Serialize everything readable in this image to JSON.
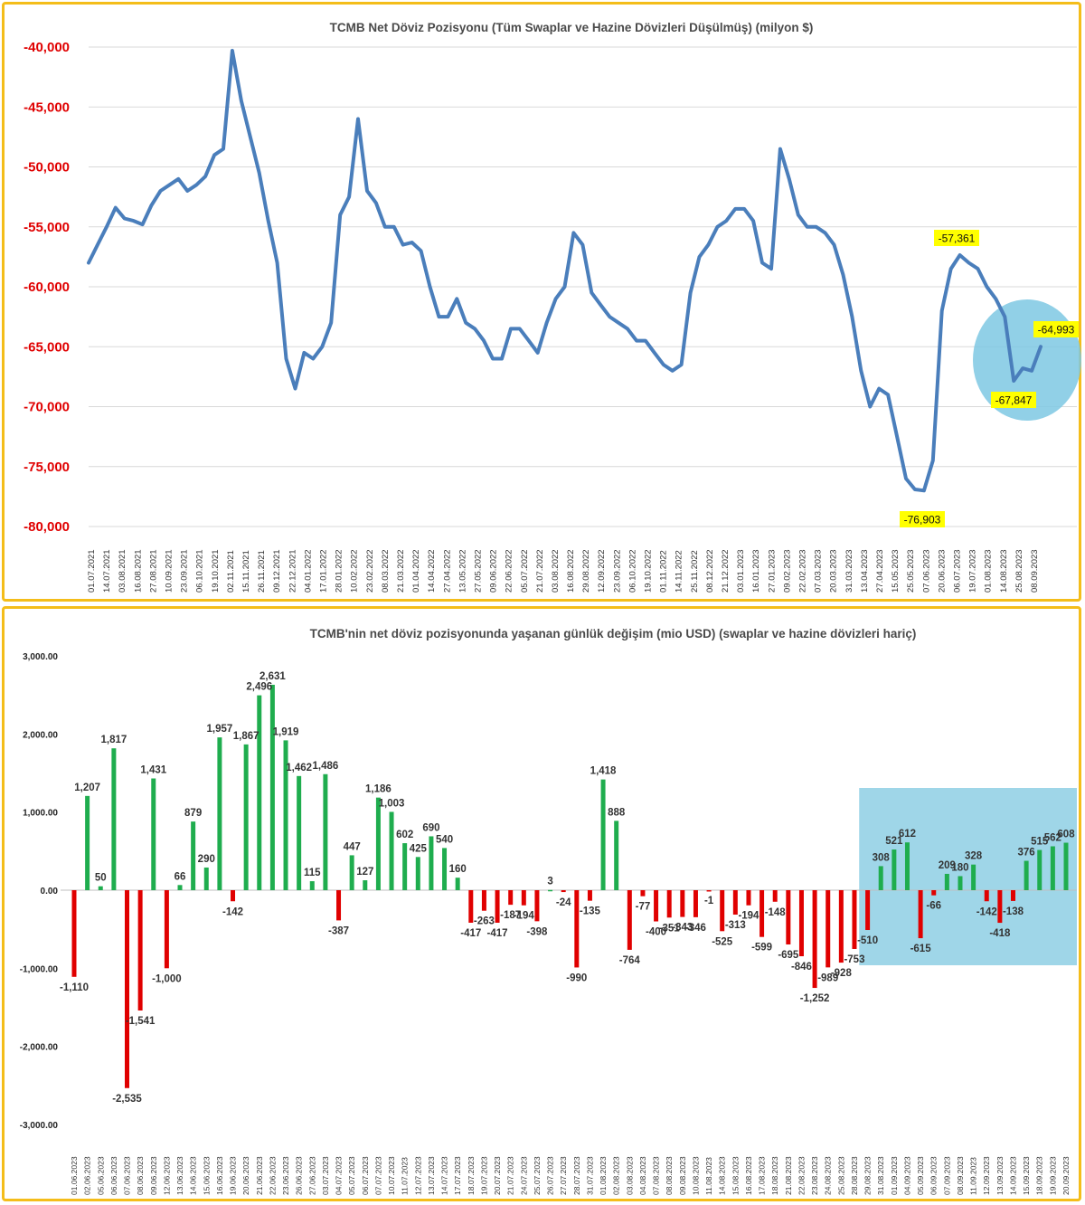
{
  "charts": [
    {
      "title": "TCMB Net Döviz Pozisyonu (Tüm Swaplar ve Hazine Dövizleri Düşülmüş) (milyon $)",
      "y_ticks": [
        "-40,000",
        "-45,000",
        "-50,000",
        "-55,000",
        "-60,000",
        "-65,000",
        "-70,000",
        "-75,000",
        "-80,000"
      ],
      "x_ticks": [
        "01.07.2021",
        "14.07.2021",
        "03.08.2021",
        "16.08.2021",
        "27.08.2021",
        "10.09.2021",
        "23.09.2021",
        "06.10.2021",
        "19.10.2021",
        "02.11.2021",
        "15.11.2021",
        "26.11.2021",
        "09.12.2021",
        "22.12.2021",
        "04.01.2022",
        "17.01.2022",
        "28.01.2022",
        "10.02.2022",
        "23.02.2022",
        "08.03.2022",
        "21.03.2022",
        "01.04.2022",
        "14.04.2022",
        "27.04.2022",
        "13.05.2022",
        "27.05.2022",
        "09.06.2022",
        "22.06.2022",
        "05.07.2022",
        "21.07.2022",
        "03.08.2022",
        "16.08.2022",
        "29.08.2022",
        "12.09.2022",
        "23.09.2022",
        "06.10.2022",
        "19.10.2022",
        "01.11.2022",
        "14.11.2022",
        "25.11.2022",
        "08.12.2022",
        "21.12.2022",
        "03.01.2023",
        "16.01.2023",
        "27.01.2023",
        "09.02.2023",
        "22.02.2023",
        "07.03.2023",
        "20.03.2023",
        "31.03.2023",
        "13.04.2023",
        "27.04.2023",
        "15.05.2023",
        "25.05.2023",
        "07.06.2023",
        "20.06.2023",
        "06.07.2023",
        "19.07.2023",
        "01.08.2023",
        "14.08.2023",
        "25.08.2023",
        "08.09.2023"
      ],
      "callouts": [
        "-57,361",
        "-64,993",
        "-67,847",
        "-76,903"
      ]
    },
    {
      "title": "TCMB'nin net döviz pozisyonunda yaşanan günlük değişim (mio USD) (swaplar ve hazine dövizleri hariç)",
      "y_ticks": [
        "3,000.00",
        "2,000.00",
        "1,000.00",
        "0.00",
        "-1,000.00",
        "-2,000.00",
        "-3,000.00"
      ]
    }
  ],
  "chart_data": [
    {
      "type": "line",
      "title": "TCMB Net Döviz Pozisyonu (Tüm Swaplar ve Hazine Dövizleri Düşülmüş) (milyon $)",
      "xlabel": "",
      "ylabel": "",
      "ylim": [
        -80000,
        -40000
      ],
      "x_tick_labels": [
        "01.07.2021",
        "14.07.2021",
        "03.08.2021",
        "16.08.2021",
        "27.08.2021",
        "10.09.2021",
        "23.09.2021",
        "06.10.2021",
        "19.10.2021",
        "02.11.2021",
        "15.11.2021",
        "26.11.2021",
        "09.12.2021",
        "22.12.2021",
        "04.01.2022",
        "17.01.2022",
        "28.01.2022",
        "10.02.2022",
        "23.02.2022",
        "08.03.2022",
        "21.03.2022",
        "01.04.2022",
        "14.04.2022",
        "27.04.2022",
        "13.05.2022",
        "27.05.2022",
        "09.06.2022",
        "22.06.2022",
        "05.07.2022",
        "21.07.2022",
        "03.08.2022",
        "16.08.2022",
        "29.08.2022",
        "12.09.2022",
        "23.09.2022",
        "06.10.2022",
        "19.10.2022",
        "01.11.2022",
        "14.11.2022",
        "25.11.2022",
        "08.12.2022",
        "21.12.2022",
        "03.01.2023",
        "16.01.2023",
        "27.01.2023",
        "09.02.2023",
        "22.02.2023",
        "07.03.2023",
        "20.03.2023",
        "31.03.2023",
        "13.04.2023",
        "27.04.2023",
        "15.05.2023",
        "25.05.2023",
        "07.06.2023",
        "20.06.2023",
        "06.07.2023",
        "19.07.2023",
        "01.08.2023",
        "14.08.2023",
        "25.08.2023",
        "08.09.2023"
      ],
      "grid": "horizontal",
      "line_color": "#4a7ebb",
      "series": [
        {
          "values": [
            -58000,
            -56500,
            -55000,
            -53400,
            -54300,
            -54500,
            -54800,
            -53200,
            -52000,
            -51500,
            -51000,
            -52000,
            -51500,
            -50800,
            -49000,
            -48500,
            -40300,
            -44500,
            -47500,
            -50500,
            -54500,
            -58000,
            -66000,
            -68500,
            -65500,
            -66000,
            -65000,
            -63000,
            -54000,
            -52500,
            -46000,
            -52000,
            -53000,
            -55000,
            -55000,
            -56500,
            -56300,
            -57000,
            -60000,
            -62500,
            -62500,
            -61000,
            -63000,
            -63500,
            -64500,
            -66000,
            -66000,
            -63500,
            -63500,
            -64500,
            -65500,
            -63000,
            -61000,
            -60000,
            -55500,
            -56500,
            -60500,
            -61500,
            -62500,
            -63000,
            -63500,
            -64500,
            -64500,
            -65500,
            -66500,
            -67000,
            -66500,
            -60500,
            -57500,
            -56500,
            -55000,
            -54500,
            -53500,
            -53500,
            -54500,
            -58000,
            -58500,
            -48500,
            -51000,
            -54000,
            -55000,
            -55000,
            -55500,
            -56500,
            -59000,
            -62500,
            -67000,
            -70000,
            -68500,
            -69000,
            -72500,
            -76000,
            -76903,
            -77000,
            -74500,
            -62000,
            -58500,
            -57361,
            -58000,
            -58500,
            -60000,
            -61000,
            -62500,
            -67847,
            -66800,
            -67000,
            -64993
          ]
        }
      ],
      "annotations": [
        {
          "text": "-57,361",
          "value": -57361,
          "date": "06.07.2023"
        },
        {
          "text": "-64,993",
          "value": -64993,
          "date": "08.09.2023"
        },
        {
          "text": "-67,847",
          "value": -67847,
          "date": "25.08.2023"
        },
        {
          "text": "-76,903",
          "value": -76903,
          "date": "07.06.2023"
        }
      ],
      "highlight": {
        "shape": "ellipse",
        "color": "#7ec8e3",
        "around": "last values"
      }
    },
    {
      "type": "bar",
      "title": "TCMB'nin net döviz pozisyonunda yaşanan günlük değişim (mio USD) (swaplar ve hazine dövizleri hariç)",
      "xlabel": "",
      "ylabel": "",
      "ylim": [
        -3000,
        3000
      ],
      "grid": "none",
      "positive_color": "#1fad4e",
      "negative_color": "#e00000",
      "categories": [
        "01.06.2023",
        "02.06.2023",
        "05.06.2023",
        "06.06.2023",
        "07.06.2023",
        "08.06.2023",
        "09.06.2023",
        "12.06.2023",
        "13.06.2023",
        "14.06.2023",
        "15.06.2023",
        "16.06.2023",
        "19.06.2023",
        "20.06.2023",
        "21.06.2023",
        "22.06.2023",
        "23.06.2023",
        "26.06.2023",
        "27.06.2023",
        "03.07.2023",
        "04.07.2023",
        "05.07.2023",
        "06.07.2023",
        "07.07.2023",
        "10.07.2023",
        "11.07.2023",
        "12.07.2023",
        "13.07.2023",
        "14.07.2023",
        "17.07.2023",
        "18.07.2023",
        "19.07.2023",
        "20.07.2023",
        "21.07.2023",
        "24.07.2023",
        "25.07.2023",
        "26.07.2023",
        "27.07.2023",
        "28.07.2023",
        "31.07.2023",
        "01.08.2023",
        "02.08.2023",
        "03.08.2023",
        "04.08.2023",
        "07.08.2023",
        "08.08.2023",
        "09.08.2023",
        "10.08.2023",
        "11.08.2023",
        "14.08.2023",
        "15.08.2023",
        "16.08.2023",
        "17.08.2023",
        "18.08.2023",
        "21.08.2023",
        "22.08.2023",
        "23.08.2023",
        "24.08.2023",
        "25.08.2023",
        "28.08.2023",
        "29.08.2023",
        "31.08.2023",
        "01.09.2023",
        "04.09.2023",
        "05.09.2023",
        "06.09.2023",
        "07.09.2023",
        "08.09.2023",
        "11.09.2023",
        "12.09.2023",
        "13.09.2023",
        "14.09.2023",
        "15.09.2023",
        "18.09.2023",
        "19.09.2023",
        "20.09.2023"
      ],
      "values": [
        -1110,
        1207,
        50,
        1817,
        -2535,
        -1541,
        1431,
        -1000,
        66,
        879,
        290,
        1957,
        -142,
        1867,
        2496,
        2631,
        1919,
        1462,
        115,
        1486,
        -387,
        447,
        127,
        1186,
        1003,
        602,
        425,
        690,
        540,
        160,
        -417,
        -263,
        -417,
        -187,
        -194,
        -398,
        3,
        -24,
        -990,
        -135,
        1418,
        888,
        -764,
        -77,
        -400,
        -351,
        -343,
        -346,
        -1,
        -525,
        -313,
        -194,
        -599,
        -148,
        -695,
        -846,
        -1252,
        -989,
        -928,
        -753,
        -510,
        308,
        521,
        612,
        -615,
        -66,
        209,
        180,
        328,
        -142,
        -418,
        -138,
        376,
        515,
        562,
        608
      ],
      "data_labels": [
        "-1,110",
        "1,207",
        "50",
        "1,817",
        "-2,535",
        "-1,541",
        "1,431",
        "-1,000",
        "66",
        "879",
        "290",
        "1,957",
        "-142",
        "1,867",
        "2,496",
        "2,631",
        "1,919",
        "1,462",
        "115",
        "1,486",
        "-387",
        "447",
        "127",
        "1,186",
        "1,003",
        "602",
        "425",
        "690",
        "540",
        "160",
        "-417",
        "-263",
        "-417",
        "-187",
        "-194",
        "-398",
        "3",
        "-24",
        "-990",
        "-135",
        "1,418",
        "888",
        "-764",
        "-77",
        "-400",
        "-351",
        "-343",
        "-346",
        "-1",
        "-525",
        "-313",
        "-194",
        "-599",
        "-148",
        "-695",
        "-846",
        "-1,252",
        "-989",
        "-928",
        "-753",
        "-510",
        "308",
        "521",
        "612",
        "-615",
        "-66",
        "209",
        "180",
        "328",
        "-142",
        "-418",
        "-138",
        "376",
        "515",
        "562",
        "608"
      ],
      "highlight": {
        "shape": "rectangle",
        "color": "#9fd6e8",
        "from_category": "31.08.2023",
        "to_category": "20.09.2023"
      }
    }
  ]
}
